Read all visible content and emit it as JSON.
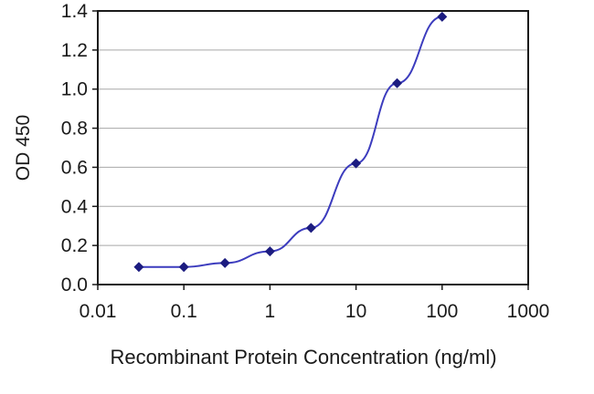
{
  "chart_data": {
    "type": "line",
    "title": "",
    "xlabel": "Recombinant Protein Concentration (ng/ml)",
    "ylabel": "OD 450",
    "x_scale": "log",
    "xlim": [
      0.01,
      1000
    ],
    "ylim": [
      0,
      1.4
    ],
    "x_ticks": [
      0.01,
      0.1,
      1,
      10,
      100,
      1000
    ],
    "x_tick_labels": [
      "0.01",
      "0.1",
      "1",
      "10",
      "100",
      "1000"
    ],
    "y_ticks": [
      0,
      0.2,
      0.4,
      0.6,
      0.8,
      1.0,
      1.2,
      1.4
    ],
    "y_tick_labels": [
      "0.0",
      "0.2",
      "0.4",
      "0.6",
      "0.8",
      "1.0",
      "1.2",
      "1.4"
    ],
    "grid": "horizontal",
    "legend": "none",
    "colors": {
      "line": "#3c3cbe",
      "marker": "#1c1c80",
      "grid": "#a8a8a8",
      "axis": "#1a1a1a"
    },
    "series": [
      {
        "name": "OD 450",
        "marker": "diamond",
        "points": [
          {
            "x": 0.03,
            "y": 0.09
          },
          {
            "x": 0.1,
            "y": 0.09
          },
          {
            "x": 0.3,
            "y": 0.11
          },
          {
            "x": 1,
            "y": 0.17
          },
          {
            "x": 3,
            "y": 0.29
          },
          {
            "x": 10,
            "y": 0.62
          },
          {
            "x": 30,
            "y": 1.03
          },
          {
            "x": 100,
            "y": 1.37
          }
        ]
      }
    ]
  }
}
